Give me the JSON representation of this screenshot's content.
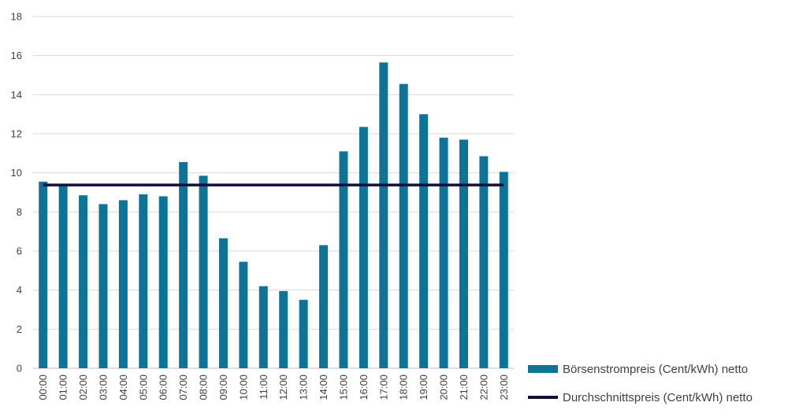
{
  "chart_data": {
    "type": "bar",
    "title": "",
    "xlabel": "",
    "ylabel": "",
    "categories": [
      "00:00",
      "01:00",
      "02:00",
      "03:00",
      "04:00",
      "05:00",
      "06:00",
      "07:00",
      "08:00",
      "09:00",
      "10:00",
      "11:00",
      "12:00",
      "13:00",
      "14:00",
      "15:00",
      "16:00",
      "17:00",
      "18:00",
      "19:00",
      "20:00",
      "21:00",
      "22:00",
      "23:00"
    ],
    "series": [
      {
        "name": "Börsenstrompreis (Cent/kWh) netto",
        "type": "bar",
        "color": "#0e7497",
        "values": [
          9.55,
          9.4,
          8.85,
          8.4,
          8.6,
          8.9,
          8.8,
          10.55,
          9.85,
          6.65,
          5.45,
          4.2,
          3.95,
          3.5,
          6.3,
          11.1,
          12.35,
          15.65,
          14.55,
          13.0,
          11.8,
          11.7,
          10.85,
          10.05
        ]
      },
      {
        "name": "Durchschnittspreis (Cent/kWh) netto",
        "type": "line",
        "color": "#140d3d",
        "value": 9.38
      }
    ],
    "yticks": [
      0,
      2,
      4,
      6,
      8,
      10,
      12,
      14,
      16,
      18
    ],
    "ylim": [
      0,
      18
    ],
    "grid": "horizontal",
    "legend_position": "bottom-right"
  }
}
